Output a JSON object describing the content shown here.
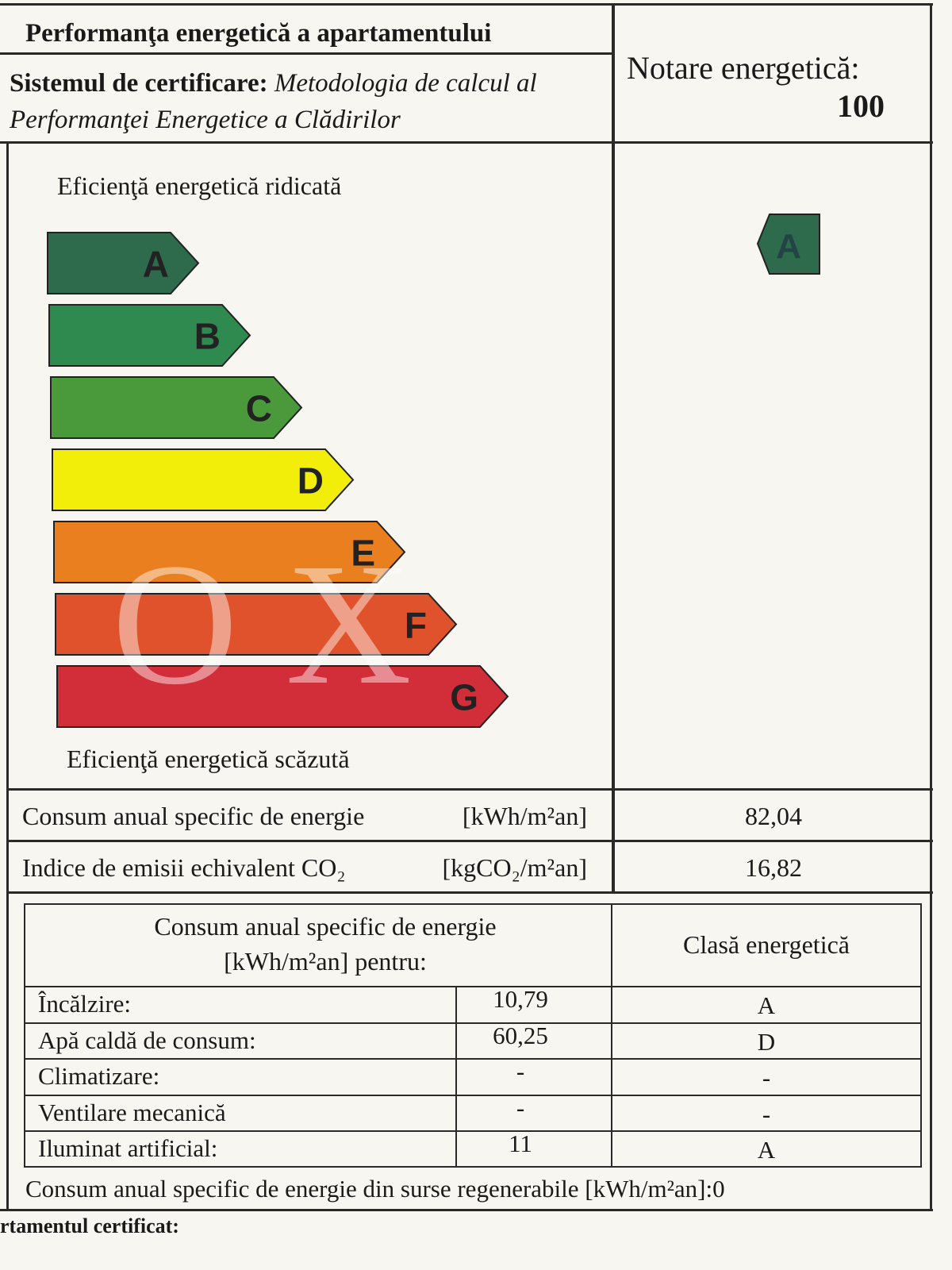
{
  "header": {
    "title": "Performanţa energetică a apartamentului",
    "system_label": "Sistemul de certificare:",
    "system_value": "Metodologia de calcul al Performanţei Energetice a Clădirilor",
    "rating_label": "Notare energetică:",
    "rating_value": "100"
  },
  "scale": {
    "top_label": "Eficienţă energetică ridicată",
    "bottom_label": "Eficienţă energetică scăzută",
    "classes": [
      {
        "label": "A",
        "color": "#2e6b4c"
      },
      {
        "label": "B",
        "color": "#2f8a4f"
      },
      {
        "label": "C",
        "color": "#4a9a3c"
      },
      {
        "label": "D",
        "color": "#f2ee0a"
      },
      {
        "label": "E",
        "color": "#e97f1e"
      },
      {
        "label": "F",
        "color": "#e0522b"
      },
      {
        "label": "G",
        "color": "#d22e3a"
      }
    ],
    "current_class": "A",
    "watermark": "OX"
  },
  "metrics": [
    {
      "label": "Consum anual specific de energie",
      "unit": "[kWh/m²an]",
      "value": "82,04"
    },
    {
      "label": "Indice de emisii echivalent CO₂",
      "unit": "[kgCO₂/m²an]",
      "value": "16,82"
    }
  ],
  "breakdown": {
    "header_consumption": "Consum anual specific de energie [kWh/m²an] pentru:",
    "header_class": "Clasă energetică",
    "rows": [
      [
        "Încălzire:",
        "10,79",
        "A"
      ],
      [
        "Apă caldă de consum:",
        "60,25",
        "D"
      ],
      [
        "Climatizare:",
        "-",
        "-"
      ],
      [
        "Ventilare mecanică",
        "-",
        "-"
      ],
      [
        "Iluminat artificial:",
        "11",
        "A"
      ]
    ]
  },
  "footer": {
    "renewable": "Consum anual specific de energie din surse regenerabile [kWh/m²an]:0",
    "cut_text": "rtamentul certificat:"
  }
}
